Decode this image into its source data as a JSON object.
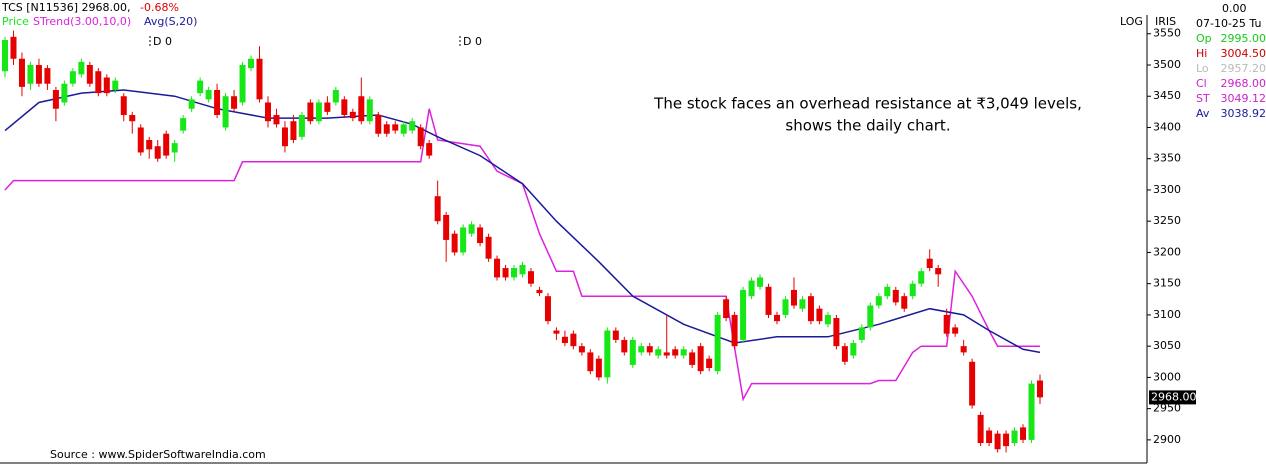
{
  "chart_data": {
    "type": "candlestick",
    "header": "TCS [N11536] 2968.00,",
    "change": "-0.68%",
    "annotation": "The stock faces an overhead resistance at ₹3,049 levels, shows the daily chart.",
    "source": "Source : www.SpiderSoftwareIndia.com",
    "markers": [
      "D 0",
      "D 0"
    ],
    "scale_label": "LOG",
    "scale_name": "IRIS",
    "last_price_label": "2968.00",
    "log_scale": false,
    "up_color": "#17e617",
    "down_color": "#e60000",
    "ylim": [
      2863,
      3580
    ],
    "yticks": [
      2900,
      2950,
      3000,
      3050,
      3100,
      3150,
      3200,
      3250,
      3300,
      3350,
      3400,
      3450,
      3500,
      3550
    ],
    "candles": {
      "name": "Price",
      "open": [
        3490,
        3545,
        3510,
        3470,
        3500,
        3495,
        3460,
        3440,
        3470,
        3485,
        3500,
        3490,
        3480,
        3460,
        3450,
        3420,
        3400,
        3380,
        3370,
        3390,
        3360,
        3395,
        3430,
        3455,
        3445,
        3460,
        3400,
        3450,
        3440,
        3495,
        3510,
        3440,
        3420,
        3400,
        3410,
        3385,
        3440,
        3410,
        3440,
        3440,
        3445,
        3425,
        3450,
        3410,
        3420,
        3405,
        3405,
        3390,
        3395,
        3400,
        3375,
        3290,
        3260,
        3230,
        3200,
        3230,
        3240,
        3225,
        3190,
        3175,
        3160,
        3165,
        3170,
        3140,
        3130,
        3075,
        3065,
        3070,
        3050,
        3040,
        3030,
        3000,
        3075,
        3060,
        3020,
        3040,
        3050,
        3035,
        3040,
        3045,
        3035,
        3040,
        3050,
        3030,
        3010,
        3125,
        3100,
        3060,
        3130,
        3145,
        3145,
        3100,
        3100,
        3140,
        3110,
        3130,
        3110,
        3085,
        3095,
        3050,
        3035,
        3060,
        3080,
        3115,
        3130,
        3140,
        3130,
        3130,
        3150,
        3190,
        3175,
        3100,
        3080,
        3050,
        3025,
        2940,
        2915,
        2910,
        2910,
        2895,
        2920,
        2900,
        2995
      ],
      "high": [
        3545,
        3555,
        3520,
        3505,
        3510,
        3500,
        3465,
        3475,
        3495,
        3510,
        3505,
        3495,
        3485,
        3480,
        3455,
        3425,
        3405,
        3385,
        3380,
        3395,
        3380,
        3420,
        3450,
        3480,
        3465,
        3470,
        3455,
        3460,
        3505,
        3515,
        3530,
        3450,
        3430,
        3410,
        3420,
        3425,
        3445,
        3445,
        3450,
        3465,
        3450,
        3430,
        3480,
        3450,
        3425,
        3410,
        3410,
        3410,
        3415,
        3405,
        3380,
        3315,
        3265,
        3235,
        3245,
        3250,
        3245,
        3230,
        3195,
        3180,
        3180,
        3185,
        3175,
        3145,
        3135,
        3080,
        3075,
        3075,
        3055,
        3045,
        3035,
        3080,
        3080,
        3065,
        3065,
        3055,
        3055,
        3050,
        3100,
        3050,
        3050,
        3045,
        3055,
        3035,
        3105,
        3130,
        3105,
        3145,
        3160,
        3165,
        3150,
        3105,
        3130,
        3160,
        3130,
        3135,
        3115,
        3105,
        3100,
        3055,
        3060,
        3085,
        3120,
        3135,
        3150,
        3145,
        3135,
        3155,
        3175,
        3205,
        3180,
        3110,
        3085,
        3060,
        3030,
        2945,
        2920,
        2915,
        2915,
        2920,
        2925,
        2995,
        3004.5
      ],
      "low": [
        3480,
        3500,
        3450,
        3460,
        3465,
        3460,
        3410,
        3435,
        3465,
        3480,
        3465,
        3450,
        3450,
        3455,
        3410,
        3390,
        3355,
        3350,
        3345,
        3350,
        3345,
        3390,
        3425,
        3450,
        3440,
        3415,
        3395,
        3425,
        3435,
        3490,
        3440,
        3400,
        3400,
        3360,
        3375,
        3380,
        3405,
        3405,
        3420,
        3435,
        3415,
        3410,
        3405,
        3405,
        3385,
        3385,
        3390,
        3385,
        3390,
        3365,
        3350,
        3245,
        3185,
        3195,
        3195,
        3225,
        3210,
        3185,
        3155,
        3155,
        3155,
        3160,
        3145,
        3130,
        3085,
        3060,
        3050,
        3045,
        3035,
        3005,
        2995,
        2990,
        3055,
        3035,
        3015,
        3035,
        3035,
        3030,
        3030,
        3030,
        3030,
        3015,
        3005,
        3010,
        3005,
        3090,
        3045,
        3055,
        3125,
        3140,
        3095,
        3085,
        3095,
        3110,
        3105,
        3085,
        3085,
        3080,
        3045,
        3020,
        3030,
        3055,
        3075,
        3110,
        3125,
        3115,
        3105,
        3125,
        3145,
        3170,
        3145,
        3065,
        3065,
        3035,
        2950,
        2890,
        2890,
        2880,
        2880,
        2890,
        2895,
        2895,
        2957.2
      ],
      "close": [
        3540,
        3510,
        3465,
        3500,
        3470,
        3470,
        3430,
        3470,
        3490,
        3505,
        3470,
        3455,
        3455,
        3475,
        3420,
        3410,
        3360,
        3365,
        3350,
        3355,
        3375,
        3415,
        3445,
        3475,
        3460,
        3420,
        3450,
        3430,
        3500,
        3510,
        3445,
        3410,
        3405,
        3370,
        3380,
        3420,
        3410,
        3440,
        3425,
        3460,
        3420,
        3415,
        3410,
        3445,
        3390,
        3390,
        3395,
        3405,
        3410,
        3370,
        3355,
        3250,
        3220,
        3200,
        3240,
        3245,
        3215,
        3190,
        3160,
        3160,
        3175,
        3180,
        3150,
        3135,
        3090,
        3070,
        3055,
        3050,
        3040,
        3010,
        3000,
        3075,
        3060,
        3040,
        3060,
        3050,
        3040,
        3045,
        3035,
        3035,
        3045,
        3020,
        3010,
        3015,
        3100,
        3095,
        3050,
        3140,
        3155,
        3160,
        3100,
        3090,
        3125,
        3115,
        3125,
        3090,
        3090,
        3100,
        3050,
        3025,
        3055,
        3080,
        3115,
        3130,
        3145,
        3120,
        3110,
        3150,
        3170,
        3175,
        3165,
        3070,
        3070,
        3040,
        2955,
        2895,
        2895,
        2885,
        2890,
        2915,
        2900,
        2990,
        2968
      ]
    },
    "series": [
      {
        "name": "STrend(3.00,10,0)",
        "color": "#dd22dd",
        "x": [
          0,
          1,
          27,
          28,
          49,
          50,
          51,
          56,
          58,
          61,
          63,
          65,
          67,
          68,
          85,
          87,
          88,
          102,
          103,
          105,
          107,
          108,
          111,
          112,
          114,
          116,
          117,
          122
        ],
        "values": [
          3300,
          3315,
          3315,
          3345,
          3345,
          3430,
          3380,
          3370,
          3330,
          3310,
          3230,
          3170,
          3170,
          3130,
          3130,
          2965,
          2990,
          2990,
          2995,
          2995,
          3040,
          3050,
          3050,
          3170,
          3130,
          3075,
          3050,
          3050
        ]
      },
      {
        "name": "Avg(S,20)",
        "color": "#1a1a9a",
        "x": [
          0,
          4,
          9,
          14,
          20,
          25,
          31,
          38,
          44,
          48,
          51,
          56,
          61,
          65,
          70,
          74,
          80,
          86,
          91,
          97,
          103,
          109,
          113,
          116,
          120,
          122
        ],
        "values": [
          3395,
          3440,
          3455,
          3460,
          3450,
          3430,
          3415,
          3415,
          3420,
          3405,
          3385,
          3355,
          3310,
          3250,
          3185,
          3130,
          3085,
          3055,
          3065,
          3065,
          3085,
          3110,
          3100,
          3075,
          3045,
          3040
        ]
      }
    ],
    "info": {
      "top": "0.00",
      "date": "07-10-25 Tu",
      "rows": [
        {
          "label": "Op",
          "value": "2995.00",
          "color": "#17c917"
        },
        {
          "label": "Hi",
          "value": "3004.50",
          "color": "#cc0000"
        },
        {
          "label": "Lo",
          "value": "2957.20",
          "color": "#bbbbbb"
        },
        {
          "label": "Cl",
          "value": "2968.00",
          "color": "#cc22cc"
        },
        {
          "label": "ST",
          "value": "3049.12",
          "color": "#cc22cc"
        },
        {
          "label": "Av",
          "value": "3038.92",
          "color": "#1a1a9a"
        }
      ]
    }
  }
}
